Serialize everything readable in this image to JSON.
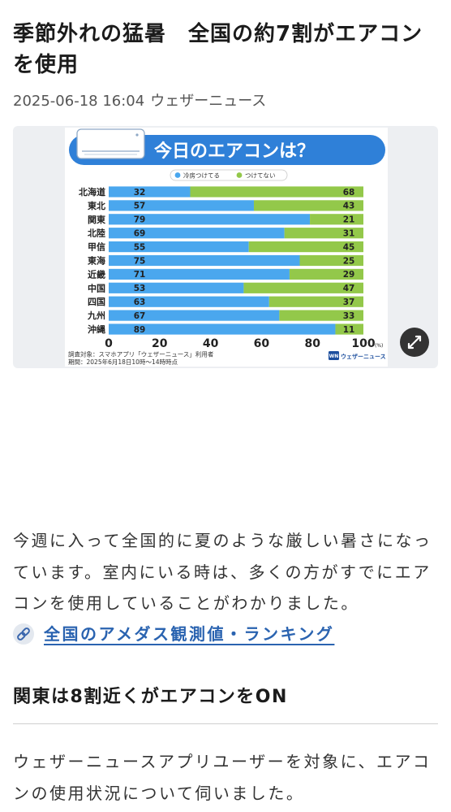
{
  "article": {
    "title": "季節外れの猛暑　全国の約7割がエアコンを使用",
    "date": "2025-06-18 16:04",
    "source": "ウェザーニュース"
  },
  "chart_data": {
    "type": "bar",
    "orientation": "horizontal",
    "stacked": true,
    "title": "今日のエアコンは？",
    "categories": [
      "北海道",
      "東北",
      "関東",
      "北陸",
      "甲信",
      "東海",
      "近畿",
      "中国",
      "四国",
      "九州",
      "沖縄"
    ],
    "series": [
      {
        "name": "冷房つけてる",
        "values": [
          32,
          57,
          79,
          69,
          55,
          75,
          71,
          53,
          63,
          67,
          89
        ],
        "color": "#4aa7ee"
      },
      {
        "name": "つけてない",
        "values": [
          68,
          43,
          21,
          31,
          45,
          25,
          29,
          47,
          37,
          33,
          11
        ],
        "color": "#93c84a"
      }
    ],
    "xlim": [
      0,
      100
    ],
    "xticks": [
      0,
      20,
      40,
      60,
      80,
      100
    ],
    "xunit": "(%)",
    "grid": false,
    "legend": "top-center",
    "notes": [
      "調査対象：スマホアプリ「ウェザーニュース」利用者",
      "期間：2025年6月18日10時〜14時時点"
    ],
    "brand": "ウェザーニュース",
    "brand_mark": "WN"
  },
  "body": {
    "paragraph_1": "今週に入って全国的に夏のような厳しい暑さになっています。室内にいる時は、多くの方がすでにエアコンを使用していることがわかりました。",
    "section_heading": "関東は8割近くがエアコンをON",
    "paragraph_2": "ウェザーニュースアプリユーザーを対象に、エアコンの使用状況について伺いました。"
  },
  "link": {
    "label": "全国のアメダス観測値・ランキング"
  },
  "icons": {
    "expand": "expand-icon",
    "link": "link-icon",
    "chart_decoration": "air-conditioner-icon"
  },
  "colors": {
    "chart_banner": "#2f80d8",
    "link": "#2a63b0",
    "expand_button": "#333333",
    "brand": "#1d4f9e"
  }
}
